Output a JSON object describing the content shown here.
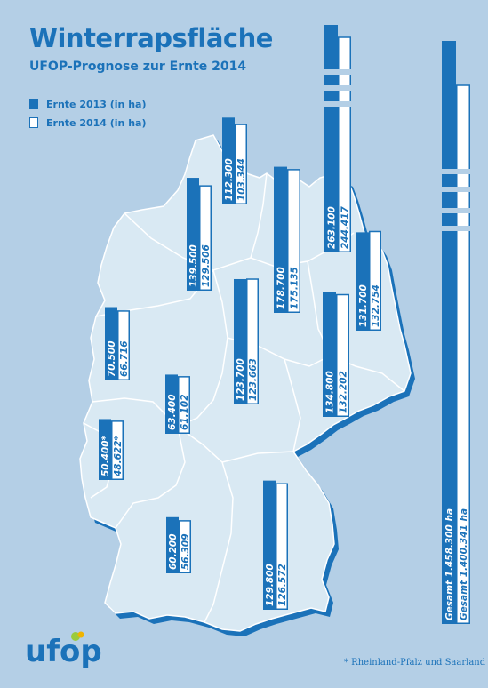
{
  "title": "Winterrapsfläche",
  "subtitle": "UFOP-Prognose zur Ernte 2014",
  "legend": {
    "ernte2013": "Ernte 2013 (in ha)",
    "ernte2014": "Ernte 2014 (in ha)"
  },
  "footnote": "* Rheinland-Pfalz und Saarland",
  "logo_text": "ufop",
  "colors": {
    "background": "#b4cfe6",
    "map_fill": "#d9e9f3",
    "map_shadow": "#1b72b9",
    "bar_2013": "#1b72b9",
    "bar_2014": "#ffffff",
    "text_blue": "#1b72b9"
  },
  "chart_data": {
    "type": "bar",
    "title": "Winterrapsfläche",
    "subtitle": "UFOP-Prognose zur Ernte 2014",
    "unit": "ha",
    "series": [
      {
        "name": "Ernte 2013 (in ha)",
        "color": "#1b72b9"
      },
      {
        "name": "Ernte 2014 (in ha)",
        "color": "#ffffff"
      }
    ],
    "regions": [
      {
        "v2013": 112300,
        "v2014": 103344,
        "label2013": "112.300",
        "label2014": "103.344"
      },
      {
        "v2013": 139500,
        "v2014": 129506,
        "label2013": "139.500",
        "label2014": "129.506"
      },
      {
        "v2013": 263100,
        "v2014": 244417,
        "label2013": "263.100",
        "label2014": "244.417",
        "broken": true
      },
      {
        "v2013": 178700,
        "v2014": 175135,
        "label2013": "178.700",
        "label2014": "175.135"
      },
      {
        "v2013": 131700,
        "v2014": 132754,
        "label2013": "131.700",
        "label2014": "132.754"
      },
      {
        "v2013": 123700,
        "v2014": 123663,
        "label2013": "123.700",
        "label2014": "123.663"
      },
      {
        "v2013": 134800,
        "v2014": 132202,
        "label2013": "134.800",
        "label2014": "132.202"
      },
      {
        "v2013": 70500,
        "v2014": 66716,
        "label2013": "70.500",
        "label2014": "66.716"
      },
      {
        "v2013": 63400,
        "v2014": 61102,
        "label2013": "63.400",
        "label2014": "61.102"
      },
      {
        "v2013": 50400,
        "v2014": 48622,
        "label2013": "50.400*",
        "label2014": "48.622*"
      },
      {
        "v2013": 60200,
        "v2014": 56309,
        "label2013": "60.200",
        "label2014": "56.309"
      },
      {
        "v2013": 129800,
        "v2014": 126572,
        "label2013": "129.800",
        "label2014": "126.572"
      },
      {
        "v2013": 1458300,
        "v2014": 1400341,
        "label2013": "Gesamt 1.458.300 ha",
        "label2014": "Gesamt 1.400.341 ha",
        "broken": true,
        "total": true
      }
    ]
  }
}
